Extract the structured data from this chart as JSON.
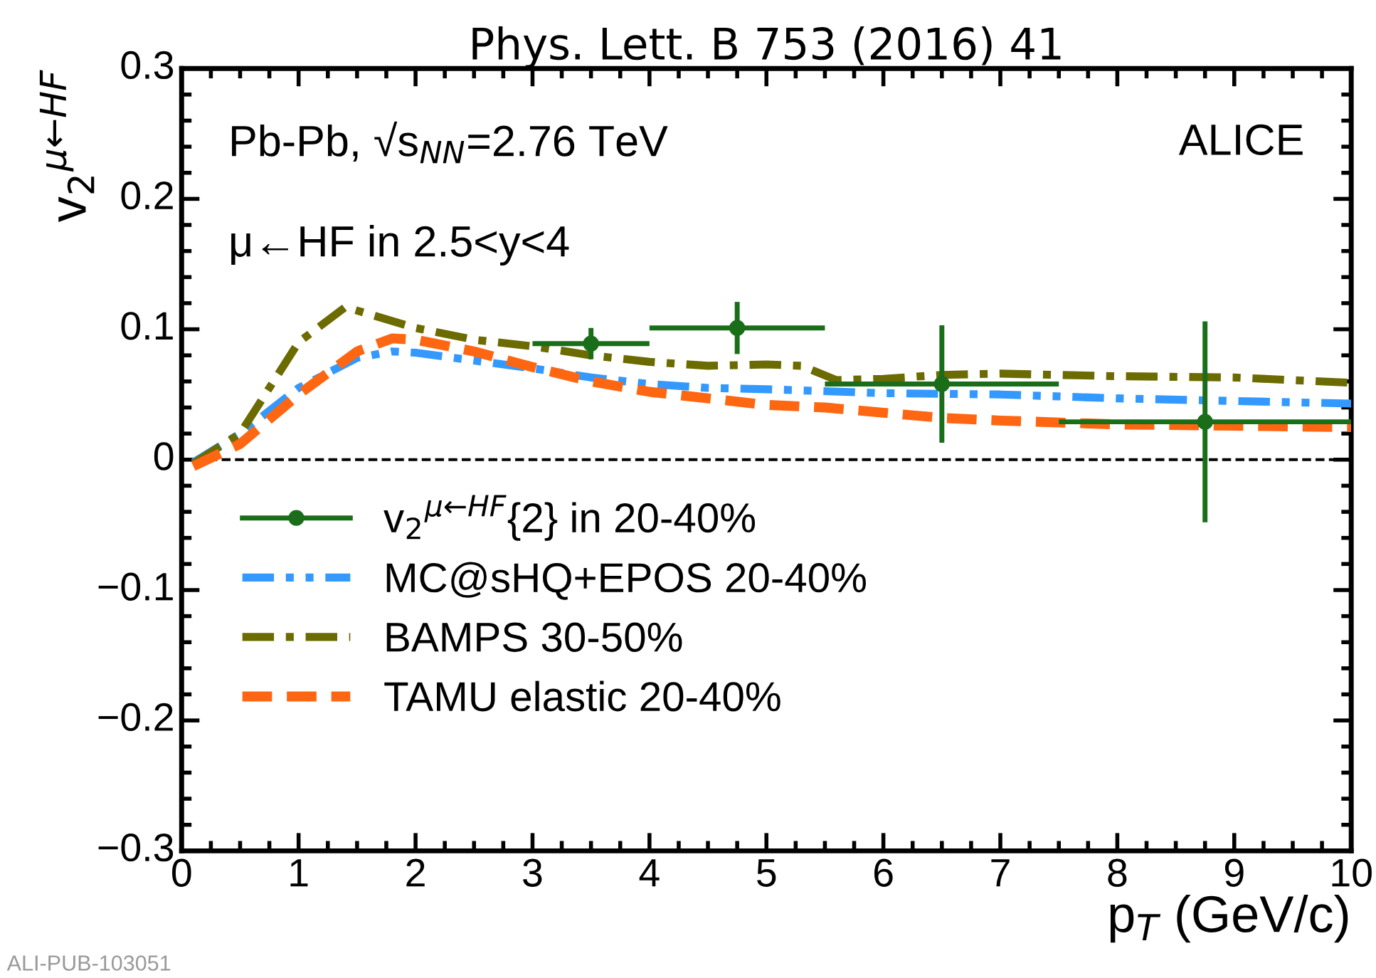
{
  "chart_data": {
    "type": "line",
    "title": "Phys. Lett. B 753 (2016) 41",
    "xlabel": "p$_{T}$ (GeV/c)",
    "ylabel": "v$_{2}$$^{μ←HF}$",
    "xlim": [
      0,
      10
    ],
    "xticks": [
      0,
      1,
      2,
      3,
      4,
      5,
      6,
      7,
      8,
      9,
      10
    ],
    "ylim": [
      -0.3,
      0.3
    ],
    "yticks": [
      {
        "value": -0.3,
        "label": "−0.3"
      },
      {
        "value": -0.2,
        "label": "−0.2"
      },
      {
        "value": -0.1,
        "label": "−0.1"
      },
      0,
      0.1,
      0.2,
      0.3
    ],
    "grid": false,
    "legend": "bottom left",
    "ref_lines": [
      {
        "axis": "y",
        "value": 0,
        "color": "#000000",
        "line_style": "dashed"
      }
    ],
    "annotations": [
      "Pb-Pb, √s$_{NN}$=2.76 TeV",
      "μ←HF in 2.5<y<4",
      "ALICE",
      "ALI-PUB-103051"
    ],
    "series": [
      {
        "name": "v$_{2}$$^{μ←HF}${2} in 20-40%",
        "type": "scatter",
        "color": "#1a6e1a",
        "marker": "circle",
        "x": [
          3.5,
          4.75,
          6.5,
          8.75
        ],
        "values": [
          0.089,
          0.101,
          0.058,
          0.029
        ],
        "errors": [
          0.012,
          0.02,
          0.045,
          0.077
        ],
        "xerrors": [
          0.5,
          0.75,
          1.0,
          1.25
        ]
      },
      {
        "name": "MC@sHQ+EPOS 20-40%",
        "color": "#3399ff",
        "line_style": "dashdotdot",
        "x": [
          0.1,
          0.5,
          1,
          1.5,
          1.8,
          2,
          2.5,
          3,
          3.5,
          4,
          4.5,
          5,
          6,
          7,
          8,
          9,
          10
        ],
        "values": [
          -0.002,
          0.02,
          0.055,
          0.078,
          0.083,
          0.082,
          0.076,
          0.07,
          0.063,
          0.058,
          0.055,
          0.054,
          0.051,
          0.05,
          0.047,
          0.045,
          0.043
        ]
      },
      {
        "name": "BAMPS 30-50%",
        "color": "#6b6b00",
        "line_style": "dashdot",
        "x": [
          0.1,
          0.5,
          1,
          1.4,
          2,
          2.5,
          3,
          3.5,
          4,
          4.5,
          5,
          5.3,
          5.6,
          6,
          6.5,
          7,
          8,
          9,
          10
        ],
        "values": [
          -0.003,
          0.02,
          0.09,
          0.117,
          0.101,
          0.092,
          0.087,
          0.08,
          0.075,
          0.072,
          0.073,
          0.072,
          0.061,
          0.062,
          0.065,
          0.066,
          0.064,
          0.063,
          0.059
        ]
      },
      {
        "name": "TAMU elastic 20-40%",
        "color": "#ff6611",
        "line_style": "dashed",
        "x": [
          0.1,
          0.5,
          1,
          1.5,
          1.8,
          2,
          2.5,
          3,
          3.5,
          4,
          4.5,
          5,
          5.5,
          6,
          6.5,
          7,
          8,
          9,
          10
        ],
        "values": [
          -0.005,
          0.012,
          0.05,
          0.083,
          0.093,
          0.092,
          0.083,
          0.071,
          0.06,
          0.052,
          0.047,
          0.042,
          0.04,
          0.036,
          0.032,
          0.03,
          0.027,
          0.026,
          0.025
        ]
      }
    ]
  }
}
